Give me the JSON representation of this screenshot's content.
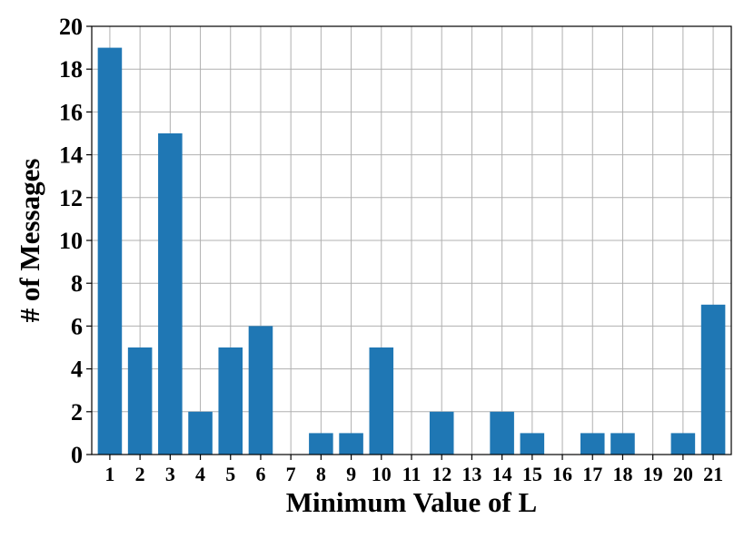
{
  "chart_data": {
    "type": "bar",
    "title": "",
    "xlabel": "Minimum Value of L",
    "ylabel": "# of Messages",
    "categories": [
      "1",
      "2",
      "3",
      "4",
      "5",
      "6",
      "7",
      "8",
      "9",
      "10",
      "11",
      "12",
      "13",
      "14",
      "15",
      "16",
      "17",
      "18",
      "19",
      "20",
      "21"
    ],
    "values": [
      19,
      5,
      15,
      2,
      5,
      6,
      0,
      1,
      1,
      5,
      0,
      2,
      0,
      2,
      1,
      0,
      1,
      1,
      0,
      1,
      7
    ],
    "ylim": [
      0,
      20
    ],
    "yticks": [
      "0",
      "2",
      "4",
      "6",
      "8",
      "10",
      "12",
      "14",
      "16",
      "18",
      "20"
    ],
    "grid": true,
    "bar_color": "#1f77b4"
  }
}
